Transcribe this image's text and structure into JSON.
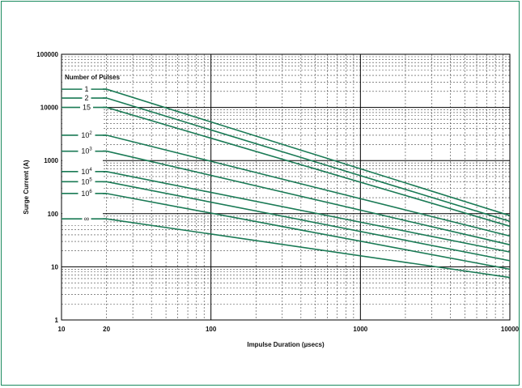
{
  "chart_data": {
    "type": "line",
    "title": "",
    "xlabel": "Impulse Duration (µsecs)",
    "ylabel": "Surge Current (A)",
    "xscale": "log",
    "yscale": "log",
    "xlim": [
      10,
      10000
    ],
    "ylim": [
      1,
      100000
    ],
    "x_ticks": [
      "10",
      "20",
      "100",
      "1000",
      "10000"
    ],
    "x_tick_values": [
      10,
      20,
      100,
      1000,
      10000
    ],
    "y_ticks": [
      "1",
      "10",
      "100",
      "1000",
      "10000",
      "100000"
    ],
    "y_tick_values": [
      1,
      10,
      100,
      1000,
      10000,
      100000
    ],
    "grid": true,
    "legend": {
      "title": "Number of Pulses",
      "placement": "left"
    },
    "color": "#1a7a55",
    "series": [
      {
        "name": "1",
        "label_base": "1",
        "label_exp": "",
        "points": [
          [
            20,
            22000
          ],
          [
            10000,
            92
          ]
        ]
      },
      {
        "name": "2",
        "label_base": "2",
        "label_exp": "",
        "points": [
          [
            20,
            15000
          ],
          [
            10000,
            72
          ]
        ]
      },
      {
        "name": "15",
        "label_base": "15",
        "label_exp": "",
        "points": [
          [
            20,
            10000
          ],
          [
            10000,
            58
          ]
        ]
      },
      {
        "name": "10²",
        "label_base": "10",
        "label_exp": "2",
        "points": [
          [
            20,
            3000
          ],
          [
            10000,
            38
          ]
        ]
      },
      {
        "name": "10³",
        "label_base": "10",
        "label_exp": "3",
        "points": [
          [
            20,
            1500
          ],
          [
            10000,
            26
          ]
        ]
      },
      {
        "name": "10⁴",
        "label_base": "10",
        "label_exp": "4",
        "points": [
          [
            20,
            620
          ],
          [
            10000,
            19
          ]
        ]
      },
      {
        "name": "10⁵",
        "label_base": "10",
        "label_exp": "5",
        "points": [
          [
            20,
            400
          ],
          [
            10000,
            13
          ]
        ]
      },
      {
        "name": "10⁶",
        "label_base": "10",
        "label_exp": "6",
        "points": [
          [
            20,
            240
          ],
          [
            10000,
            9
          ]
        ]
      },
      {
        "name": "∞",
        "label_base": "∞",
        "label_exp": "",
        "points": [
          [
            20,
            80
          ],
          [
            10000,
            6.3
          ]
        ]
      }
    ]
  }
}
